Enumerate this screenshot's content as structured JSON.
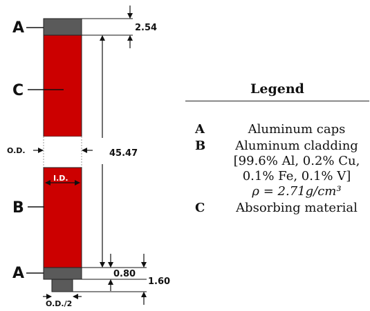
{
  "diagram": {
    "labels": {
      "cap_top": "A",
      "absorber": "C",
      "cladding": "B",
      "cap_bottom": "A",
      "outer_diameter": "O.D.",
      "inner_diameter": "I.D.",
      "half_outer_diameter": "O.D./2"
    },
    "dimensions": {
      "cap_thickness": "2.54",
      "absorber_length": "45.47",
      "bottom_gap": "0.80",
      "stub_length": "1.60"
    },
    "colors": {
      "absorber": "#cc0000",
      "cap": "#5a5a5a",
      "gap": "#ffffff",
      "line": "#111111"
    }
  },
  "legend": {
    "title": "Legend",
    "entries": [
      {
        "key": "A",
        "lines": [
          "Aluminum caps"
        ]
      },
      {
        "key": "B",
        "lines": [
          "Aluminum cladding",
          "[99.6% Al, 0.2% Cu,",
          "0.1% Fe, 0.1% V]",
          "ρ = 2.71g/cm³"
        ]
      },
      {
        "key": "C",
        "lines": [
          "Absorbing material"
        ]
      }
    ]
  }
}
